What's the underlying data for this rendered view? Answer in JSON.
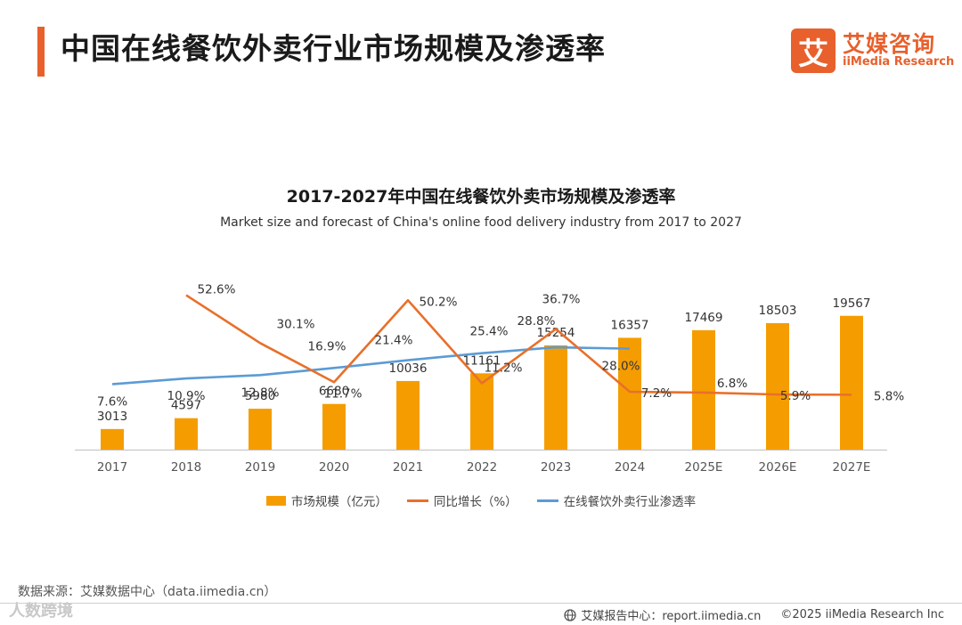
{
  "header": {
    "title": "中国在线餐饮外卖行业市场规模及渗透率",
    "logo_cn": "艾媒咨询",
    "logo_en": "iiMedia Research",
    "logo_mark": "艾"
  },
  "chart_data": {
    "type": "bar",
    "title": "2017-2027年中国在线餐饮外卖市场规模及渗透率",
    "subtitle": "Market size and forecast of China's online food delivery industry from 2017 to 2027",
    "categories": [
      "2017",
      "2018",
      "2019",
      "2020",
      "2021",
      "2022",
      "2023",
      "2024",
      "2025E",
      "2026E",
      "2027E"
    ],
    "series": [
      {
        "name": "市场规模（亿元）",
        "type": "bar",
        "color": "#f59d00",
        "values": [
          3013,
          4597,
          5980,
          6680,
          10036,
          11161,
          15254,
          16357,
          17469,
          18503,
          19567
        ],
        "labels": [
          "3013",
          "4597",
          "5980",
          "6680",
          "10036",
          "11161",
          "15254",
          "16357",
          "17469",
          "18503",
          "19567"
        ]
      },
      {
        "name": "同比增长（%）",
        "type": "line",
        "color": "#e8702a",
        "values": [
          null,
          52.6,
          30.1,
          11.7,
          50.2,
          11.2,
          36.7,
          7.2,
          6.8,
          5.9,
          5.8
        ],
        "labels": [
          "",
          "52.6%",
          "30.1%",
          "11.7%",
          "50.2%",
          "11.2%",
          "36.7%",
          "7.2%",
          "6.8%",
          "5.9%",
          "5.8%"
        ]
      },
      {
        "name": "在线餐饮外卖行业渗透率",
        "type": "line",
        "color": "#5b9bd5",
        "values": [
          7.6,
          10.9,
          12.8,
          16.9,
          21.4,
          25.4,
          28.8,
          28.0,
          null,
          null,
          null
        ],
        "labels": [
          "7.6%",
          "10.9%",
          "12.8%",
          "16.9%",
          "21.4%",
          "25.4%",
          "28.8%",
          "28.0%",
          "",
          "",
          ""
        ]
      }
    ],
    "bar_axis_max": 28000,
    "growth_axis_range": [
      -20,
      70
    ],
    "penetration_axis_range": [
      -30,
      80
    ],
    "grid": false,
    "legend_position": "bottom"
  },
  "legend": {
    "bar": "市场规模（亿元）",
    "growth": "同比增长（%）",
    "penetration": "在线餐饮外卖行业渗透率"
  },
  "source": "数据来源：艾媒数据中心（data.iimedia.cn）",
  "watermark": "人数跨境",
  "footer": {
    "report": "艾媒报告中心：report.iimedia.cn",
    "copyright": "©2025  iiMedia Research  Inc"
  }
}
